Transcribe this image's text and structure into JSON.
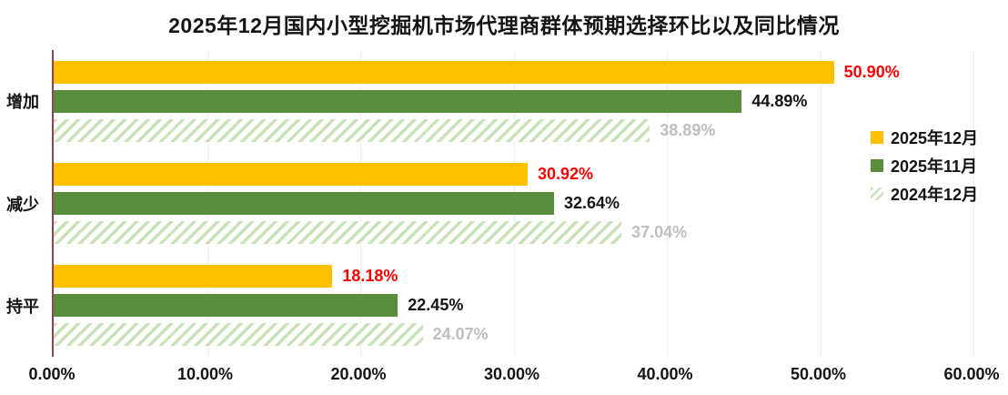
{
  "chart_data": {
    "type": "bar",
    "orientation": "horizontal",
    "title": "2025年12月国内小型挖掘机市场代理商群体预期选择环比以及同比情况",
    "categories": [
      "增加",
      "减少",
      "持平"
    ],
    "series": [
      {
        "name": "2025年12月",
        "values": [
          50.9,
          30.92,
          18.18
        ],
        "bar_color": "#FFC000",
        "label_color": "#FF0000",
        "pattern": "solid"
      },
      {
        "name": "2025年11月",
        "values": [
          44.89,
          32.64,
          22.45
        ],
        "bar_color": "#5A8C3E",
        "label_color": "#141414",
        "pattern": "solid"
      },
      {
        "name": "2024年12月",
        "values": [
          38.89,
          37.04,
          24.07
        ],
        "bar_color": "#C9E3B8",
        "label_color": "#BFBFBF",
        "pattern": "hatch"
      }
    ],
    "xlim": [
      0,
      60
    ],
    "x_ticks": [
      "0.00%",
      "10.00%",
      "20.00%",
      "30.00%",
      "40.00%",
      "50.00%",
      "60.00%"
    ],
    "value_suffix": "%",
    "grid": true,
    "legend_position": "right",
    "data_labels": true,
    "colors": {
      "axis_line": "#8E4557",
      "gridline": "#EDEDED",
      "background": "#FFFFFF",
      "highlight_label": "#FF0000",
      "muted_label": "#BFBFBF"
    }
  }
}
